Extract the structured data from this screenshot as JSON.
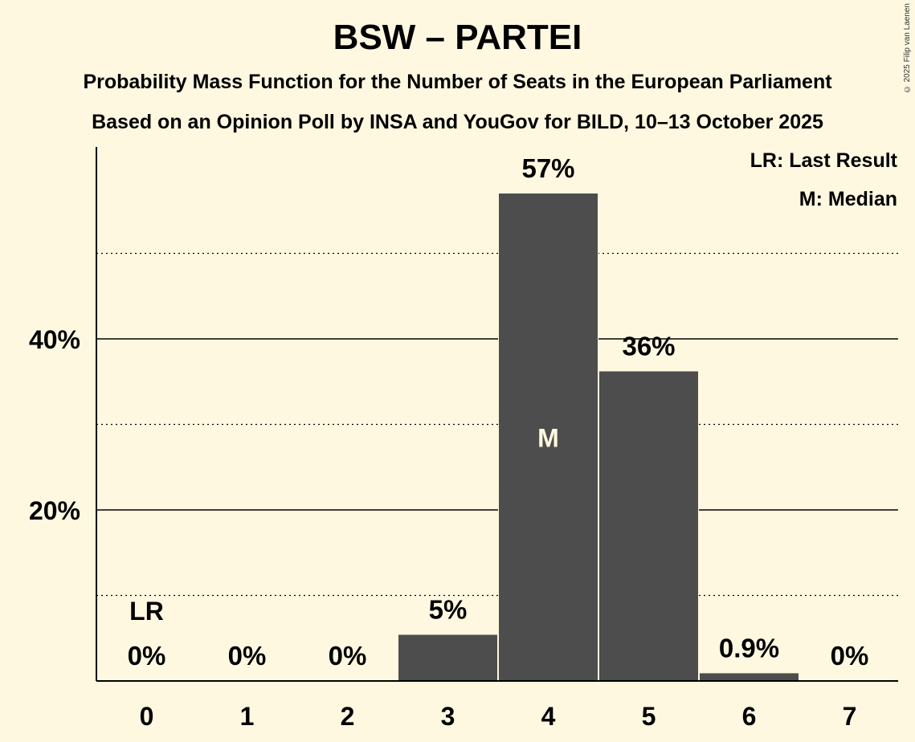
{
  "copyright": "© 2025 Filip van Laenen",
  "chart_data": {
    "type": "bar",
    "title": "BSW – PARTEI",
    "subtitle": "Probability Mass Function for the Number of Seats in the European Parliament",
    "subtitle2": "Based on an Opinion Poll by INSA and YouGov for BILD, 10–13 October 2025",
    "categories": [
      "0",
      "1",
      "2",
      "3",
      "4",
      "5",
      "6",
      "7"
    ],
    "values": [
      0,
      0,
      0,
      5.4,
      57,
      36.2,
      0.9,
      0
    ],
    "value_labels": [
      "0%",
      "0%",
      "0%",
      "5%",
      "57%",
      "36%",
      "0.9%",
      "0%"
    ],
    "ylim": [
      0,
      62
    ],
    "yticks": [
      20,
      40
    ],
    "ytick_labels": [
      "20%",
      "40%"
    ],
    "minor_gridlines": [
      10,
      30,
      50
    ],
    "bar_color": "#4d4d4d",
    "background_color": "#fff8e1",
    "last_result": {
      "category": "0",
      "label": "LR"
    },
    "median": {
      "category": "4",
      "label": "M"
    },
    "legend": {
      "position": "top-right",
      "entries": [
        "LR: Last Result",
        "M: Median"
      ]
    }
  }
}
